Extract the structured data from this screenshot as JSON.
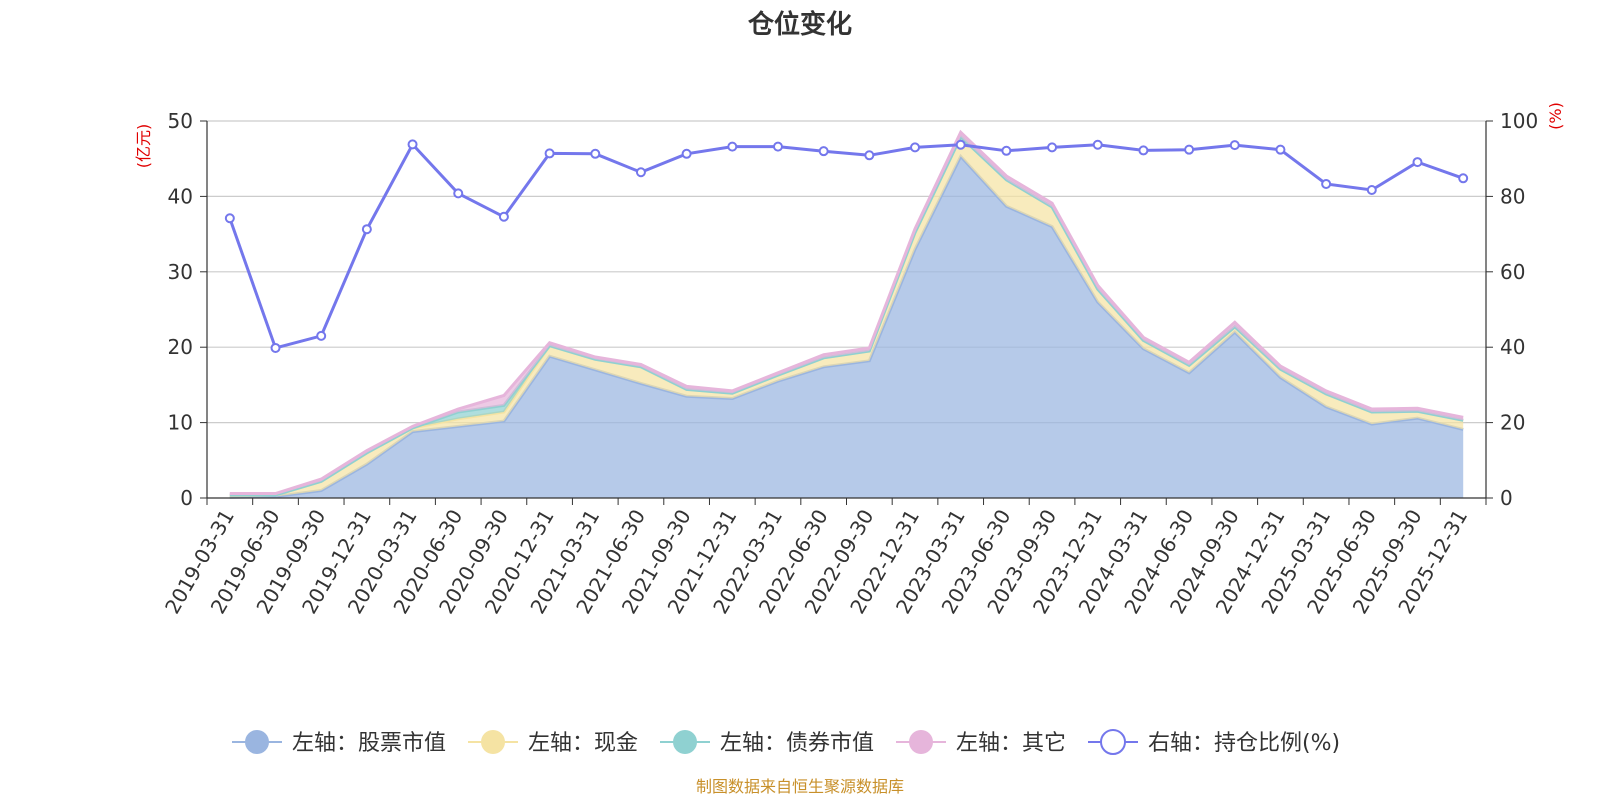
{
  "chart_data": {
    "type": "area",
    "title": "仓位变化",
    "left_axis_unit": "(亿元)",
    "right_axis_unit": "(%)",
    "left_ylim": [
      0,
      50
    ],
    "right_ylim": [
      0,
      100
    ],
    "left_ticks": [
      "0",
      "10",
      "20",
      "30",
      "40",
      "50"
    ],
    "right_ticks": [
      "0",
      "20",
      "40",
      "60",
      "80",
      "100"
    ],
    "categories": [
      "2019-03-31",
      "2019-06-30",
      "2019-09-30",
      "2019-12-31",
      "2020-03-31",
      "2020-06-30",
      "2020-09-30",
      "2020-12-31",
      "2021-03-31",
      "2021-06-30",
      "2021-09-30",
      "2021-12-31",
      "2022-03-31",
      "2022-06-30",
      "2022-09-30",
      "2022-12-31",
      "2023-03-31",
      "2023-06-30",
      "2023-09-30",
      "2023-12-31",
      "2024-03-31",
      "2024-06-30",
      "2024-09-30",
      "2024-12-31",
      "2025-03-31",
      "2025-06-30",
      "2025-09-30",
      "2025-12-31"
    ],
    "series": [
      {
        "name": "左轴：股票市值",
        "axis": "left",
        "stack": true,
        "color": "#9ab5e0",
        "values": [
          0.1,
          0.2,
          1.0,
          4.5,
          8.8,
          9.5,
          10.2,
          18.8,
          17.0,
          15.2,
          13.5,
          13.2,
          15.5,
          17.4,
          18.2,
          33.0,
          45.3,
          38.7,
          36.0,
          26.0,
          19.8,
          16.6,
          22.0,
          16.0,
          12.1,
          9.8,
          10.6,
          9.1
        ]
      },
      {
        "name": "左轴：现金",
        "axis": "left",
        "stack": true,
        "color": "#f5e3a3",
        "values": [
          0.3,
          0.2,
          1.2,
          1.5,
          0.5,
          1.0,
          1.2,
          1.4,
          1.4,
          2.2,
          0.9,
          0.7,
          0.8,
          1.2,
          1.3,
          2.2,
          2.6,
          3.5,
          2.6,
          1.7,
          1.1,
          1.0,
          0.7,
          1.1,
          1.7,
          1.6,
          0.9,
          1.2
        ]
      },
      {
        "name": "左轴：债券市值",
        "axis": "left",
        "stack": true,
        "color": "#8fd1d1",
        "values": [
          0,
          0,
          0,
          0,
          0,
          0.9,
          0.9,
          0,
          0,
          0,
          0,
          0,
          0,
          0,
          0,
          0,
          0,
          0,
          0,
          0,
          0,
          0,
          0,
          0,
          0,
          0,
          0,
          0
        ]
      },
      {
        "name": "左轴：其它",
        "axis": "left",
        "stack": true,
        "color": "#e6b5db",
        "values": [
          0.2,
          0.2,
          0.3,
          0.3,
          0.2,
          0.4,
          1.3,
          0.4,
          0.3,
          0.3,
          0.4,
          0.3,
          0.3,
          0.4,
          0.4,
          0.5,
          0.6,
          0.5,
          0.5,
          0.5,
          0.4,
          0.4,
          0.6,
          0.4,
          0.4,
          0.4,
          0.4,
          0.4
        ]
      },
      {
        "name": "右轴：持仓比例(%)",
        "axis": "right",
        "type": "line",
        "color": "#7477ec",
        "values": [
          74.2,
          39.8,
          43.0,
          71.3,
          93.8,
          80.8,
          74.6,
          91.4,
          91.3,
          86.4,
          91.3,
          93.2,
          93.2,
          92.0,
          90.9,
          93.0,
          93.7,
          92.1,
          93.0,
          93.7,
          92.2,
          92.4,
          93.6,
          92.4,
          83.3,
          81.7,
          89.1,
          84.8
        ]
      }
    ],
    "legend_position": "bottom",
    "grid": true
  },
  "legend_items": [
    {
      "label": "左轴：股票市值",
      "color": "#9ab5e0",
      "style": "filled"
    },
    {
      "label": "左轴：现金",
      "color": "#f5e3a3",
      "style": "filled"
    },
    {
      "label": "左轴：债券市值",
      "color": "#8fd1d1",
      "style": "filled"
    },
    {
      "label": "左轴：其它",
      "color": "#e6b5db",
      "style": "filled"
    },
    {
      "label": "右轴：持仓比例(%)",
      "color": "#7477ec",
      "style": "hollow"
    }
  ],
  "source_note": "制图数据来自恒生聚源数据库"
}
